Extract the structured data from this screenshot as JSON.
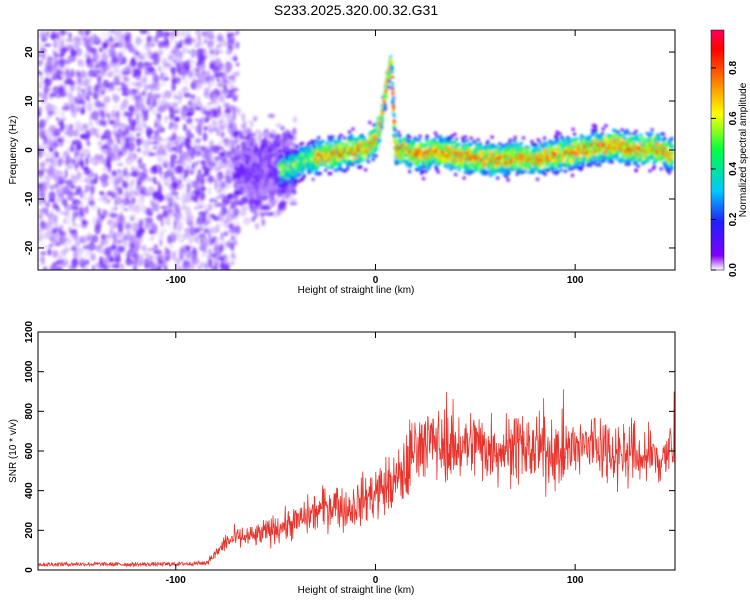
{
  "title": "S233.2025.320.00.32.G31",
  "chart_data": [
    {
      "type": "heatmap",
      "xlabel": "Height of straight line (km)",
      "ylabel": "Frequency (Hz)",
      "xlim": [
        -169,
        150
      ],
      "ylim": [
        -24.5,
        24.5
      ],
      "xticks": [
        -100,
        0,
        100
      ],
      "yticks": [
        -20,
        -10,
        0,
        10,
        20
      ],
      "grid": false,
      "colorbar": {
        "label": "Normalized spectral amplitude",
        "range": [
          0.0,
          0.95
        ],
        "ticks": [
          0.0,
          0.2,
          0.4,
          0.6,
          0.8
        ],
        "tick_labels": [
          "0.0",
          "0.2",
          "0.4",
          "0.6",
          "0.8"
        ],
        "colormap": "rainbow (purple→blue→cyan→green→yellow→orange→red→pink)"
      },
      "ridge": {
        "x": [
          -45,
          -40,
          -35,
          -30,
          -25,
          -20,
          -15,
          -10,
          -5,
          0,
          3,
          6,
          8,
          10,
          15,
          20,
          30,
          40,
          50,
          60,
          70,
          80,
          90,
          100,
          110,
          120,
          130,
          140,
          148
        ],
        "y": [
          -4,
          -3,
          -2,
          -1.5,
          -1,
          -1,
          -0.5,
          0,
          0.5,
          2,
          6,
          14,
          18,
          0,
          0,
          -1,
          -0.5,
          -1,
          -1.5,
          -2,
          -1.5,
          -2,
          -1,
          -0.5,
          0.5,
          1,
          0,
          0.5,
          -1
        ]
      }
    },
    {
      "type": "line",
      "xlabel": "Height of straight line (km)",
      "ylabel": "SNR (10 * v/v)",
      "xlim": [
        -169,
        150
      ],
      "ylim": [
        0,
        1200
      ],
      "xticks": [
        -100,
        0,
        100
      ],
      "yticks": [
        0,
        200,
        400,
        600,
        800,
        1000,
        1200
      ],
      "grid": false,
      "color": "#e8342c",
      "series": [
        {
          "x": [
            -169,
            -150,
            -120,
            -100,
            -85,
            -80,
            -75,
            -70,
            -60,
            -50,
            -40,
            -30,
            -20,
            -15,
            -10,
            -5,
            0,
            5,
            10,
            15,
            20,
            25,
            30,
            40,
            50,
            60,
            70,
            80,
            90,
            100,
            110,
            120,
            130,
            140,
            150
          ],
          "y": [
            28,
            30,
            28,
            30,
            35,
            80,
            140,
            160,
            170,
            210,
            240,
            290,
            340,
            300,
            330,
            360,
            390,
            420,
            440,
            500,
            620,
            650,
            640,
            620,
            640,
            610,
            620,
            600,
            590,
            600,
            640,
            600,
            580,
            560,
            600
          ]
        }
      ]
    }
  ]
}
